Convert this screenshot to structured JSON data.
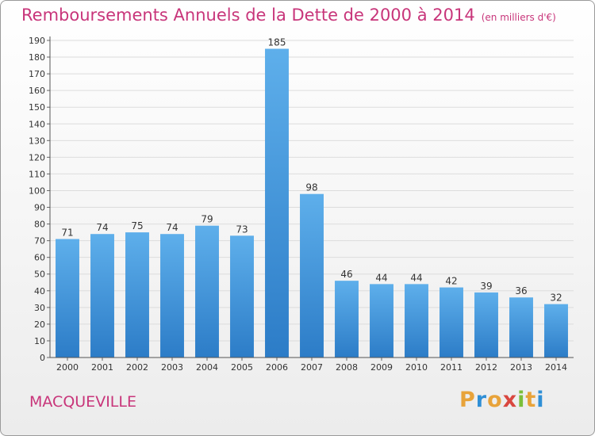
{
  "chart_data": {
    "type": "bar",
    "title": "Remboursements Annuels de la Dette de 2000 à 2014",
    "subtitle": "(en milliers d'€)",
    "categories": [
      "2000",
      "2001",
      "2002",
      "2003",
      "2004",
      "2005",
      "2006",
      "2007",
      "2008",
      "2009",
      "2010",
      "2011",
      "2012",
      "2013",
      "2014"
    ],
    "values": [
      71,
      74,
      75,
      74,
      79,
      73,
      185,
      98,
      46,
      44,
      44,
      42,
      39,
      36,
      32
    ],
    "ylim": [
      0,
      190
    ],
    "ytick_step": 10,
    "grid": true,
    "bar_color": "#4a9be0",
    "accent_color": "#c8357a"
  },
  "footer": {
    "town": "MACQUEVILLE",
    "logo": "Proxiti"
  }
}
